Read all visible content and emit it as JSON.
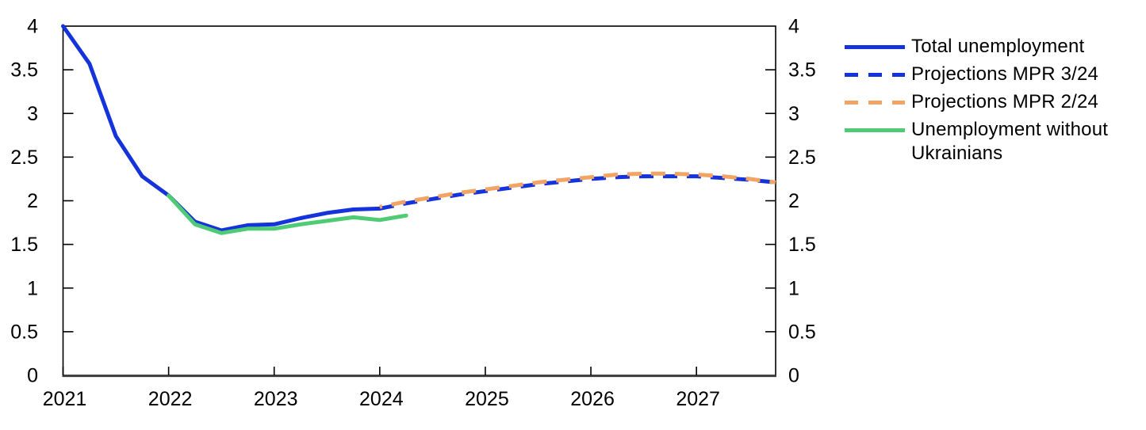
{
  "chart_data": {
    "type": "line",
    "title": "",
    "xlabel": "",
    "ylabel": "",
    "xlim": [
      2021,
      2027.75
    ],
    "ylim": [
      0,
      4
    ],
    "x_ticks": [
      2021,
      2022,
      2023,
      2024,
      2025,
      2026,
      2027
    ],
    "x_tick_labels": [
      "2021",
      "2022",
      "2023",
      "2024",
      "2025",
      "2026",
      "2027"
    ],
    "y_ticks": [
      0,
      0.5,
      1,
      1.5,
      2,
      2.5,
      3,
      3.5,
      4
    ],
    "y_tick_labels": [
      "0",
      "0.5",
      "1",
      "1.5",
      "2",
      "2.5",
      "3",
      "3.5",
      "4"
    ],
    "y_axis_sides": [
      "left",
      "right"
    ],
    "grid": false,
    "frame": true,
    "colors": {
      "blue": "#1433db",
      "orange": "#f1a463",
      "green": "#4ecb74",
      "axis": "#000000",
      "bottom_axis": "#404040"
    },
    "series": [
      {
        "name": "Total unemployment",
        "style": "solid",
        "color": "#1433db",
        "x": [
          2021.0,
          2021.25,
          2021.5,
          2021.75,
          2022.0,
          2022.25,
          2022.5,
          2022.75,
          2023.0,
          2023.25,
          2023.5,
          2023.75,
          2024.0
        ],
        "y": [
          4.0,
          3.57,
          2.74,
          2.28,
          2.06,
          1.76,
          1.66,
          1.72,
          1.73,
          1.8,
          1.86,
          1.9,
          1.91
        ]
      },
      {
        "name": "Unemployment without Ukrainians",
        "style": "solid",
        "color": "#4ecb74",
        "x": [
          2022.0,
          2022.25,
          2022.5,
          2022.75,
          2023.0,
          2023.25,
          2023.5,
          2023.75,
          2024.0,
          2024.25
        ],
        "y": [
          2.06,
          1.73,
          1.63,
          1.68,
          1.68,
          1.73,
          1.77,
          1.81,
          1.78,
          1.83
        ]
      },
      {
        "name": "Projections MPR 3/24",
        "style": "dashed",
        "color": "#1433db",
        "x": [
          2024.0,
          2024.25,
          2024.5,
          2024.75,
          2025.0,
          2025.25,
          2025.5,
          2025.75,
          2026.0,
          2026.25,
          2026.5,
          2026.75,
          2027.0,
          2027.25,
          2027.5,
          2027.75
        ],
        "y": [
          1.91,
          1.97,
          2.02,
          2.07,
          2.11,
          2.15,
          2.19,
          2.22,
          2.25,
          2.27,
          2.28,
          2.28,
          2.28,
          2.26,
          2.24,
          2.21
        ]
      },
      {
        "name": "Projections MPR 2/24",
        "style": "dashed",
        "color": "#f1a463",
        "x": [
          2024.0,
          2024.25,
          2024.5,
          2024.75,
          2025.0,
          2025.25,
          2025.5,
          2025.75,
          2026.0,
          2026.25,
          2026.5,
          2026.75,
          2027.0,
          2027.25,
          2027.5,
          2027.75
        ],
        "y": [
          1.93,
          1.99,
          2.04,
          2.09,
          2.13,
          2.17,
          2.21,
          2.24,
          2.27,
          2.3,
          2.31,
          2.31,
          2.3,
          2.28,
          2.25,
          2.21
        ]
      }
    ],
    "legend": {
      "position": "right",
      "order": [
        0,
        2,
        3,
        1
      ]
    }
  }
}
